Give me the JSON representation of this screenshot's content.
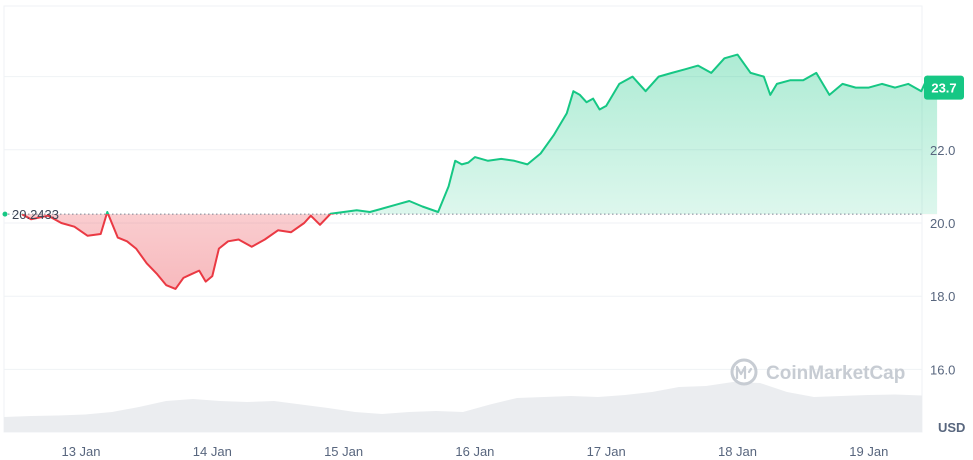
{
  "chart_data": {
    "type": "area",
    "x_labels": [
      "13 Jan",
      "14 Jan",
      "15 Jan",
      "16 Jan",
      "17 Jan",
      "18 Jan",
      "19 Jan"
    ],
    "y_ticks": [
      "16.0",
      "18.0",
      "20.0",
      "22.0"
    ],
    "ylim": [
      14.3,
      24.8
    ],
    "unit": "USD",
    "reference_value": 20.2433,
    "reference_label": "20.2433",
    "current_value": 23.7,
    "current_label": "23.7",
    "watermark": "CoinMarketCap",
    "grid": true,
    "colors": {
      "up": "#16c784",
      "down": "#ea3943",
      "grid": "#eff2f5",
      "volume": "#ebedf0"
    },
    "series": [
      {
        "x": [
          12.55,
          12.62,
          12.75,
          12.85,
          12.95,
          13.05,
          13.15,
          13.2,
          13.28,
          13.35,
          13.42,
          13.5,
          13.58,
          13.65,
          13.72,
          13.78,
          13.84,
          13.9,
          13.95,
          14.0,
          14.05,
          14.12,
          14.2,
          14.3,
          14.4,
          14.5,
          14.6,
          14.7,
          14.75,
          14.82,
          14.9,
          15.0,
          15.1,
          15.2,
          15.3,
          15.4,
          15.5,
          15.6,
          15.72,
          15.8,
          15.85,
          15.9,
          15.95,
          16.0,
          16.1,
          16.2,
          16.3,
          16.4,
          16.5,
          16.6,
          16.7,
          16.75,
          16.8,
          16.85,
          16.9,
          16.95,
          17.0,
          17.1,
          17.2,
          17.3,
          17.4,
          17.5,
          17.6,
          17.7,
          17.8,
          17.9,
          18.0,
          18.1,
          18.2,
          18.25,
          18.3,
          18.4,
          18.5,
          18.6,
          18.7,
          18.8,
          18.9,
          19.0,
          19.1,
          19.2,
          19.3,
          19.4,
          19.45,
          19.52
        ],
        "y": [
          20.24,
          20.1,
          20.2,
          20.0,
          19.9,
          19.65,
          19.7,
          20.3,
          19.6,
          19.5,
          19.3,
          18.9,
          18.6,
          18.3,
          18.2,
          18.5,
          18.6,
          18.7,
          18.4,
          18.55,
          19.3,
          19.5,
          19.55,
          19.35,
          19.55,
          19.8,
          19.75,
          20.0,
          20.2,
          19.95,
          20.25,
          20.3,
          20.35,
          20.3,
          20.4,
          20.5,
          20.6,
          20.45,
          20.3,
          21.0,
          21.7,
          21.6,
          21.65,
          21.8,
          21.7,
          21.75,
          21.7,
          21.6,
          21.9,
          22.4,
          23.0,
          23.6,
          23.5,
          23.3,
          23.4,
          23.1,
          23.2,
          23.8,
          24.0,
          23.6,
          24.0,
          24.1,
          24.2,
          24.3,
          24.1,
          24.5,
          24.6,
          24.1,
          24.0,
          23.5,
          23.8,
          23.9,
          23.9,
          24.1,
          23.5,
          23.8,
          23.7,
          23.7,
          23.8,
          23.7,
          23.8,
          23.6,
          24.0,
          23.7
        ]
      }
    ],
    "volume": [
      0.3,
      0.32,
      0.33,
      0.35,
      0.4,
      0.5,
      0.62,
      0.66,
      0.62,
      0.6,
      0.62,
      0.55,
      0.48,
      0.4,
      0.36,
      0.4,
      0.42,
      0.4,
      0.55,
      0.68,
      0.7,
      0.72,
      0.7,
      0.74,
      0.8,
      0.9,
      0.92,
      1.0,
      0.98,
      0.8,
      0.7,
      0.72,
      0.74,
      0.75,
      0.73
    ]
  }
}
